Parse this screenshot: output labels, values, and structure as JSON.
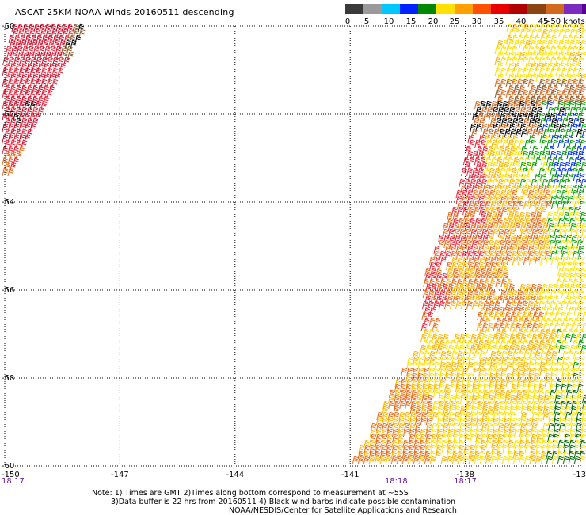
{
  "title": "ASCAT 25KM NOAA Winds 20160511 descending",
  "colorbar": {
    "segments": [
      {
        "color": "#3a3a3a"
      },
      {
        "color": "#9a9a9a"
      },
      {
        "color": "#00c8ff"
      },
      {
        "color": "#0022ff"
      },
      {
        "color": "#008800"
      },
      {
        "color": "#ffe000"
      },
      {
        "color": "#ffa000"
      },
      {
        "color": "#ff5000"
      },
      {
        "color": "#e80000"
      },
      {
        "color": "#b00000"
      },
      {
        "color": "#8b4513"
      },
      {
        "color": "#d2691e"
      },
      {
        "color": "#7b2bbf"
      },
      {
        "color": "#5a0090"
      }
    ],
    "labels": [
      "0",
      "5",
      "10",
      "15",
      "20",
      "25",
      "30",
      "35",
      "40",
      "45",
      ">50 knots"
    ],
    "units": "knots"
  },
  "map": {
    "lon_ticks": [
      "-150",
      "-147",
      "-144",
      "-141",
      "-138",
      "-13"
    ],
    "lat_ticks": [
      "-50",
      "-52",
      "-54",
      "-56",
      "-58",
      "-60"
    ],
    "time_labels": [
      {
        "text": "18:17",
        "lon": -150
      },
      {
        "text": "18:18",
        "lon": -139.8
      },
      {
        "text": "18:17",
        "lon": -138
      }
    ],
    "wind_colors": {
      "dark_red": "#c8102e",
      "red": "#e8253b",
      "orange": "#e86a1a",
      "dark_orange": "#d2691e",
      "gold": "#ffb300",
      "yellow": "#ffe000",
      "light_yellow": "#ffd21a",
      "green": "#00a000",
      "dark_green": "#006400",
      "blue": "#0030ff",
      "black": "#000000",
      "brown": "#8b5a2b"
    }
  },
  "notes": {
    "line1": "Note: 1) Times are GMT 2)Times along bottom correspond to measurement at ~55S",
    "line2": "3)Data buffer is 22 hrs from 20160511 4) Black wind barbs indicate possible contamination",
    "credit": "NOAA/NESDIS/Center for Satellite Applications and Research"
  }
}
